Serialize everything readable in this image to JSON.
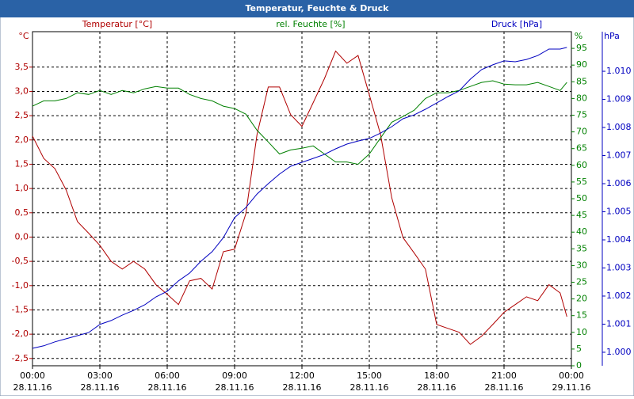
{
  "chart_data": {
    "type": "line",
    "title": "Temperatur, Feuchte & Druck",
    "y_unit": "°C",
    "y2_unit": "%",
    "y3_unit": "hPa",
    "x": [
      0,
      0.5,
      1,
      1.5,
      2,
      2.5,
      3,
      3.5,
      4,
      4.5,
      5,
      5.5,
      6,
      6.5,
      7,
      7.5,
      8,
      8.5,
      9,
      9.5,
      10,
      10.5,
      11,
      11.5,
      12,
      12.5,
      13,
      13.5,
      14,
      14.5,
      15,
      15.5,
      16,
      16.5,
      17,
      17.5,
      18,
      18.5,
      19,
      19.5,
      20,
      20.5,
      21,
      21.5,
      22,
      22.5,
      23,
      23.5,
      23.8
    ],
    "xlim": [
      0,
      24
    ],
    "xticks": [
      {
        "value": 0,
        "label": "00:00"
      },
      {
        "value": 3,
        "label": "03:00"
      },
      {
        "value": 6,
        "label": "06:00"
      },
      {
        "value": 9,
        "label": "09:00"
      },
      {
        "value": 12,
        "label": "12:00"
      },
      {
        "value": 15,
        "label": "15:00"
      },
      {
        "value": 18,
        "label": "18:00"
      },
      {
        "value": 21,
        "label": "21:00"
      },
      {
        "value": 24,
        "label": "00:00"
      }
    ],
    "xtick_dates": [
      "28.11.16",
      "28.11.16",
      "28.11.16",
      "28.11.16",
      "28.11.16",
      "28.11.16",
      "28.11.16",
      "28.11.16",
      "29.11.16"
    ],
    "ylim": [
      -2.65,
      4.23
    ],
    "yticks": [
      {
        "value": 3.5,
        "label": "3,5"
      },
      {
        "value": 3,
        "label": "3,0"
      },
      {
        "value": 2.5,
        "label": "2,5"
      },
      {
        "value": 2,
        "label": "2,0"
      },
      {
        "value": 1.5,
        "label": "1,5"
      },
      {
        "value": 1,
        "label": "1,0"
      },
      {
        "value": 0.5,
        "label": "0,5"
      },
      {
        "value": 0,
        "label": "0,0"
      },
      {
        "value": -0.5,
        "label": "-0,5"
      },
      {
        "value": -1,
        "label": "-1,0"
      },
      {
        "value": -1.5,
        "label": "-1,5"
      },
      {
        "value": -2,
        "label": "-2,0"
      },
      {
        "value": -2.5,
        "label": "-2,5"
      }
    ],
    "y2lim": [
      0,
      100
    ],
    "y2ticks": [
      0,
      5,
      10,
      15,
      20,
      25,
      30,
      35,
      40,
      45,
      50,
      55,
      60,
      65,
      70,
      75,
      80,
      85,
      90,
      95
    ],
    "y3lim": [
      999.52,
      1011.41
    ],
    "y3ticks": [
      {
        "value": 1000,
        "label": "1.000"
      },
      {
        "value": 1001,
        "label": "1.001"
      },
      {
        "value": 1002,
        "label": "1.002"
      },
      {
        "value": 1003,
        "label": "1.003"
      },
      {
        "value": 1004,
        "label": "1.004"
      },
      {
        "value": 1005,
        "label": "1.005"
      },
      {
        "value": 1006,
        "label": "1.006"
      },
      {
        "value": 1007,
        "label": "1.007"
      },
      {
        "value": 1008,
        "label": "1.008"
      },
      {
        "value": 1009,
        "label": "1.009"
      },
      {
        "value": 1010,
        "label": "1.010"
      }
    ],
    "grid": true,
    "series": [
      {
        "name": "Temperatur [°C]",
        "color": "#b00000",
        "axis": "y",
        "values": [
          2.08,
          1.62,
          1.41,
          0.97,
          0.32,
          0.08,
          -0.17,
          -0.5,
          -0.66,
          -0.5,
          -0.66,
          -0.98,
          -1.18,
          -1.39,
          -0.9,
          -0.85,
          -1.07,
          -0.3,
          -0.25,
          0.48,
          2.11,
          3.09,
          3.09,
          2.52,
          2.28,
          2.77,
          3.26,
          3.83,
          3.58,
          3.74,
          2.93,
          2.11,
          0.81,
          -0.01,
          -0.33,
          -0.66,
          -1.8,
          -1.88,
          -1.96,
          -2.21,
          -2.04,
          -1.8,
          -1.55,
          -1.39,
          -1.23,
          -1.31,
          -0.98,
          -1.15,
          -1.64
        ]
      },
      {
        "name": "rel. Feuchte [%]",
        "color": "#008000",
        "axis": "y2",
        "values": [
          77.7,
          79.3,
          79.3,
          80,
          81.7,
          81.2,
          82.4,
          81.2,
          82.4,
          81.7,
          82.9,
          83.6,
          83.1,
          83.1,
          81.2,
          80,
          79.3,
          77.7,
          77,
          75.3,
          70.5,
          67,
          63.4,
          64.6,
          65.1,
          65.8,
          63.4,
          61,
          61,
          60.3,
          63.4,
          68.2,
          72.9,
          74.6,
          76.5,
          80,
          81.7,
          81.7,
          82.4,
          83.6,
          84.8,
          85.3,
          84.3,
          84.1,
          84.1,
          84.8,
          83.6,
          82.4,
          84.8
        ]
      },
      {
        "name": "Druck [hPa]",
        "color": "#0000c0",
        "axis": "y3",
        "values": [
          1000.14,
          1000.23,
          1000.37,
          1000.48,
          1000.59,
          1000.7,
          1000.99,
          1001.13,
          1001.32,
          1001.49,
          1001.69,
          1001.97,
          1002.17,
          1002.54,
          1002.82,
          1003.24,
          1003.58,
          1004.08,
          1004.79,
          1005.15,
          1005.63,
          1006.0,
          1006.34,
          1006.62,
          1006.76,
          1006.9,
          1007.04,
          1007.24,
          1007.41,
          1007.52,
          1007.61,
          1007.8,
          1008.03,
          1008.31,
          1008.45,
          1008.65,
          1008.87,
          1009.1,
          1009.3,
          1009.72,
          1010.06,
          1010.23,
          1010.37,
          1010.34,
          1010.42,
          1010.56,
          1010.79,
          1010.79,
          1010.85
        ]
      }
    ]
  }
}
